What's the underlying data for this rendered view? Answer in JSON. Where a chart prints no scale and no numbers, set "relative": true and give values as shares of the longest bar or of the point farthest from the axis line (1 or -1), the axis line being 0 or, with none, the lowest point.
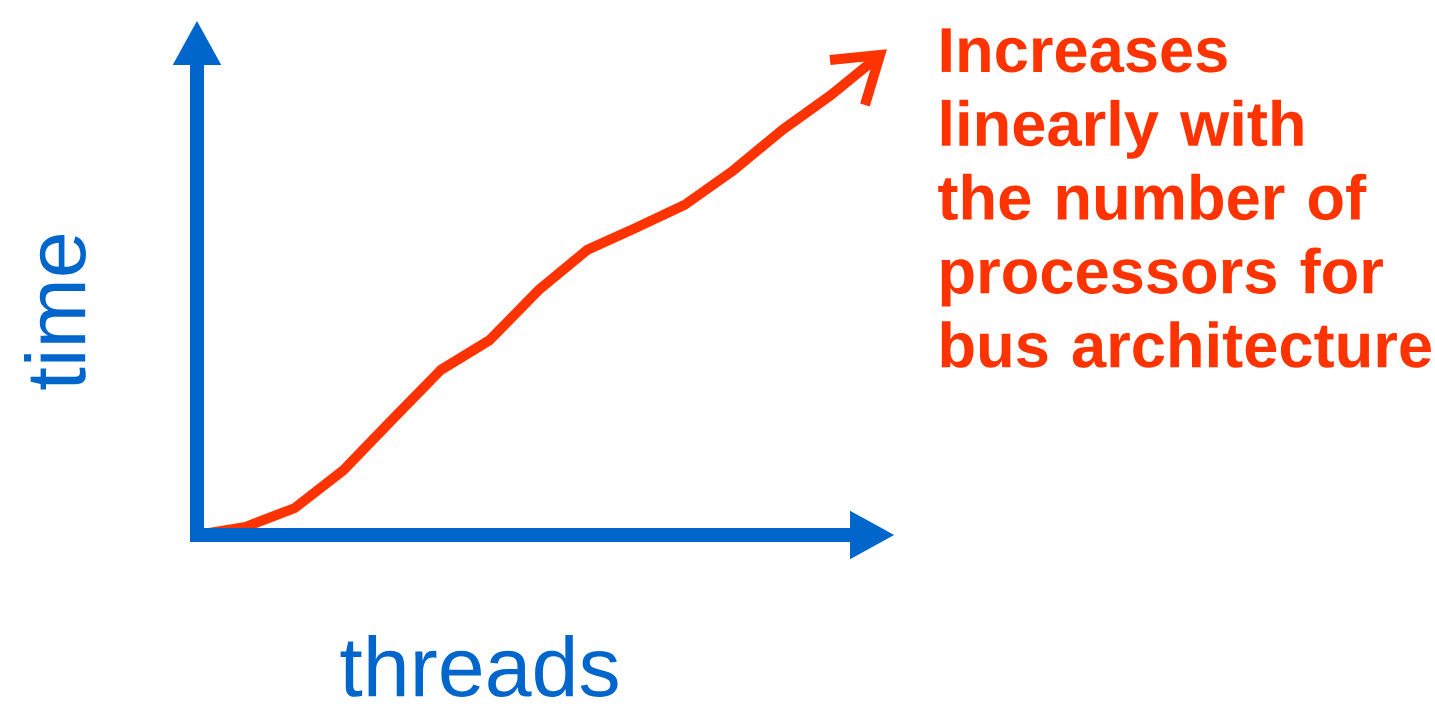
{
  "chart_data": {
    "type": "line",
    "relative": true,
    "xlabel": "threads",
    "ylabel": "time",
    "categories": [
      null,
      null,
      null,
      null,
      null,
      null,
      null,
      null,
      null,
      null,
      null,
      null,
      null,
      null,
      null
    ],
    "values": [
      0,
      0.017,
      0.056,
      0.135,
      0.24,
      0.344,
      0.406,
      0.51,
      0.594,
      0.64,
      0.688,
      0.76,
      0.844,
      0.917,
      1.0
    ],
    "color": "#ff3300",
    "annotations": [
      "Increases linearly with the number of processors for bus architecture"
    ]
  }
}
